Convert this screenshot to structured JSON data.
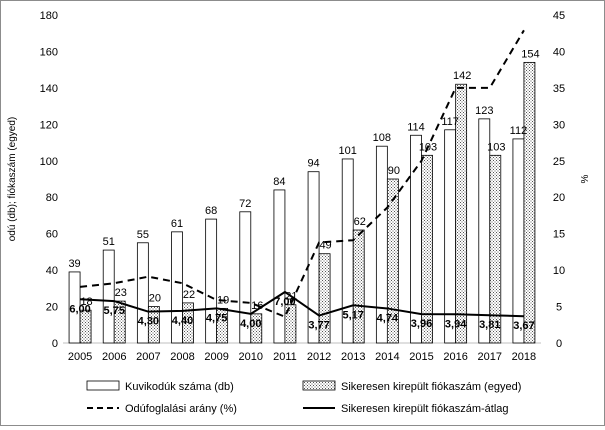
{
  "chart_data": {
    "type": "bar",
    "categories": [
      "2005",
      "2006",
      "2007",
      "2008",
      "2009",
      "2010",
      "2011",
      "2012",
      "2013",
      "2014",
      "2015",
      "2016",
      "2017",
      "2018"
    ],
    "ylabel": "odú (db); fiókaszám (egyed)",
    "y2label": "%",
    "ylim": [
      0,
      180
    ],
    "y2lim": [
      0,
      45
    ],
    "yticks": [
      "0",
      "20",
      "40",
      "60",
      "80",
      "100",
      "120",
      "140",
      "160",
      "180"
    ],
    "y2ticks": [
      "0",
      "5",
      "10",
      "15",
      "20",
      "25",
      "30",
      "35",
      "40",
      "45"
    ],
    "grid": false,
    "legend_position": "bottom",
    "series": [
      {
        "name": "Kuvikodúk száma (db)",
        "type": "bar",
        "axis": "left",
        "pattern": "white",
        "values": [
          39,
          51,
          55,
          61,
          68,
          72,
          84,
          94,
          101,
          108,
          114,
          117,
          123,
          112
        ],
        "labels": [
          "39",
          "51",
          "55",
          "61",
          "68",
          "72",
          "84",
          "94",
          "101",
          "108",
          "114",
          "117",
          "123",
          "112"
        ]
      },
      {
        "name": "Sikeresen kirepült fiókaszám (egyed)",
        "type": "bar",
        "axis": "left",
        "pattern": "dotted",
        "values": [
          18,
          23,
          20,
          22,
          19,
          16,
          21,
          49,
          62,
          90,
          103,
          142,
          103,
          154
        ],
        "labels": [
          "18",
          "23",
          "20",
          "22",
          "19",
          "16",
          "21",
          "49",
          "62",
          "90",
          "103",
          "142",
          "103",
          "154"
        ]
      },
      {
        "name": "Odúfoglalási arány (%)",
        "type": "line",
        "axis": "right",
        "style": "dashed",
        "values": [
          7.7,
          8.2,
          9.1,
          8.2,
          5.9,
          5.5,
          3.6,
          13.8,
          14.1,
          18.6,
          25.0,
          35.0,
          35.0,
          42.9
        ]
      },
      {
        "name": "Sikeresen kirepült fiókaszám-átlag",
        "type": "line",
        "axis": "right",
        "style": "solid",
        "values": [
          6.0,
          5.75,
          4.3,
          4.4,
          4.75,
          4.0,
          7.0,
          3.77,
          5.17,
          4.74,
          3.96,
          3.94,
          3.81,
          3.67
        ],
        "labels": [
          "6,00",
          "5,75",
          "4,30",
          "4,40",
          "4,75",
          "4,00",
          "7,00",
          "3,77",
          "5,17",
          "4,74",
          "3,96",
          "3,94",
          "3,81",
          "3,67"
        ]
      }
    ]
  }
}
